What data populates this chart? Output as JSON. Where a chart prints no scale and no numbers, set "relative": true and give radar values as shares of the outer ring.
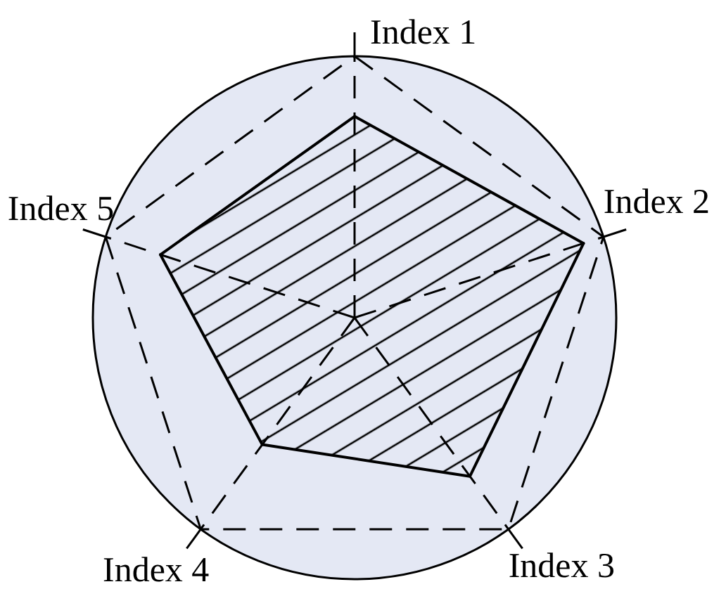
{
  "chart_data": {
    "type": "radar",
    "categories": [
      "Index 1",
      "Index 2",
      "Index 3",
      "Index 4",
      "Index 5"
    ],
    "relative": true,
    "series": [
      {
        "color": "#000000",
        "values": [
          0.77,
          0.92,
          0.75,
          0.6,
          0.78
        ]
      }
    ],
    "grid": true
  }
}
